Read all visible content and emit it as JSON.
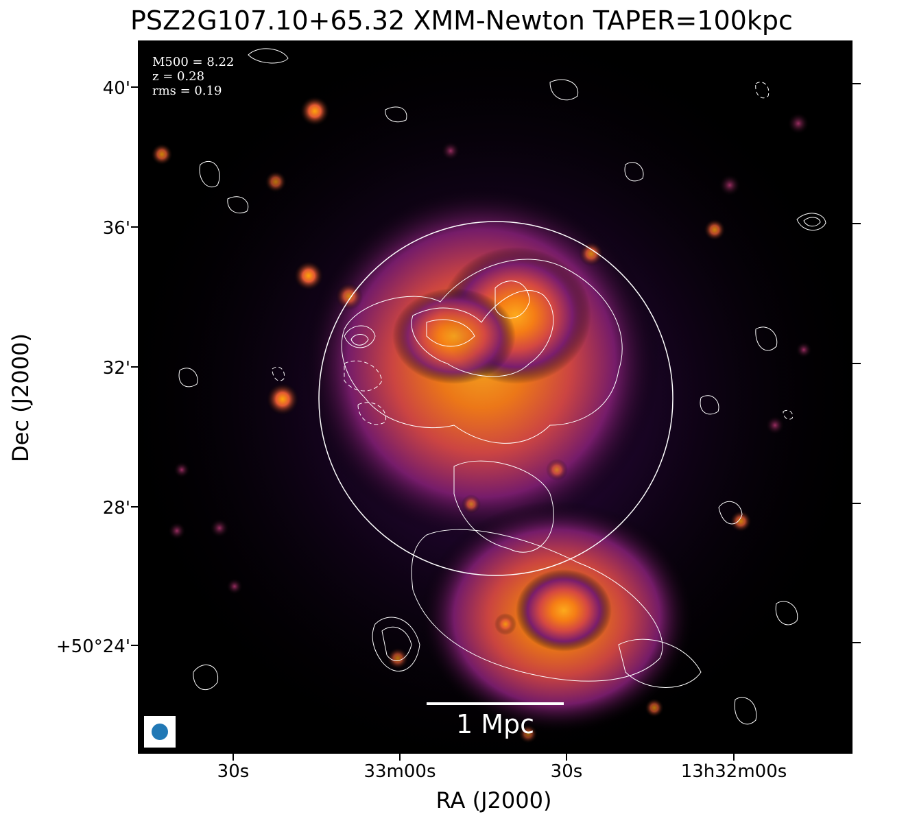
{
  "title": "PSZ2G107.10+65.32 XMM-Newton TAPER=100kpc",
  "info": {
    "mass": "M500 = 8.22",
    "redshift": "z = 0.28",
    "rms": "rms = 0.19"
  },
  "scalebar": {
    "label": "1 Mpc"
  },
  "axes": {
    "xlabel": "RA (J2000)",
    "ylabel": "Dec (J2000)",
    "xticks": [
      "30s",
      "33m00s",
      "30s",
      "13h32m00s"
    ],
    "yticks": [
      "40'",
      "36'",
      "32'",
      "28'",
      "+50°24'"
    ]
  },
  "colormap": "inferno",
  "colors": {
    "contour": "#ffffff",
    "beam": "#2178b5",
    "background": "#000000"
  }
}
